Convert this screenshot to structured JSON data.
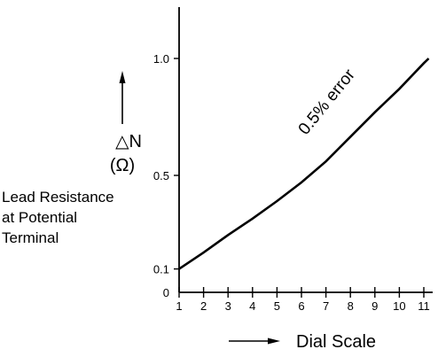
{
  "chart_data": {
    "type": "line",
    "title": "",
    "xlabel": "Dial Scale",
    "ylabel_symbol": "△N",
    "ylabel_unit": "(Ω)",
    "ylabel_description": [
      "Lead Resistance",
      "at Potential",
      "Terminal"
    ],
    "xlim": [
      1,
      11.2
    ],
    "ylim": [
      0,
      1.2
    ],
    "x_ticks": [
      1,
      2,
      3,
      4,
      5,
      6,
      7,
      8,
      9,
      10,
      11
    ],
    "x_tick_labels": [
      "1",
      "2",
      "3",
      "4",
      "5",
      "6",
      "7",
      "8",
      "9",
      "10",
      "11"
    ],
    "y_ticks": [
      0,
      0.1,
      0.5,
      1.0
    ],
    "y_tick_labels": [
      "0",
      "0.1",
      "0.5",
      "1.0"
    ],
    "grid": false,
    "series": [
      {
        "name": "0.5% error",
        "x": [
          1,
          2,
          3,
          4,
          5,
          6,
          7,
          8,
          9,
          10,
          11,
          11.2
        ],
        "y": [
          0.1,
          0.17,
          0.245,
          0.315,
          0.39,
          0.47,
          0.56,
          0.665,
          0.77,
          0.87,
          0.98,
          1.0
        ]
      }
    ],
    "annotations": [
      {
        "text": "0.5% error",
        "x": 7.2,
        "y": 0.8,
        "angle": -51
      }
    ]
  }
}
